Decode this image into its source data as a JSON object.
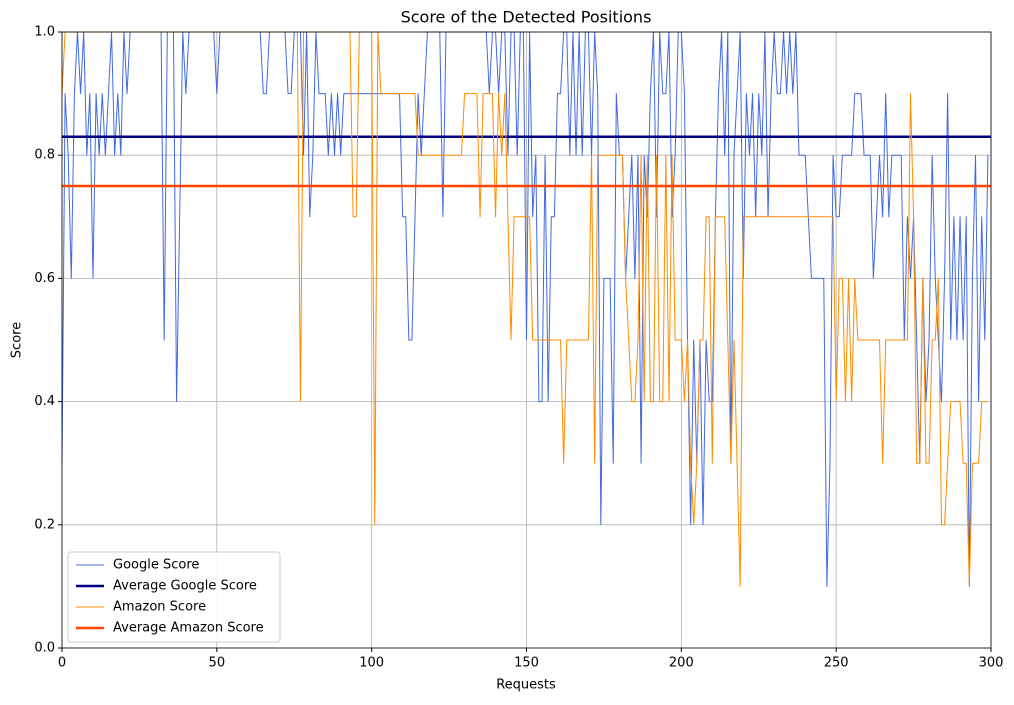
{
  "chart_data": {
    "type": "line",
    "title": "Score of the Detected Positions",
    "x_label": "Requests",
    "y_label": "Score",
    "xlim": [
      0,
      300
    ],
    "xticks": [
      0,
      50,
      100,
      150,
      200,
      250,
      300
    ],
    "ylim": [
      0,
      1
    ],
    "yticks": [
      {
        "value": 0,
        "label": "0.0"
      },
      0.2,
      0.4,
      0.6,
      0.8,
      {
        "value": 1,
        "label": "1.0"
      }
    ],
    "grid": true,
    "legend": "lower left",
    "x": [
      0,
      1,
      2,
      3,
      4,
      5,
      6,
      7,
      8,
      9,
      10,
      11,
      12,
      13,
      14,
      15,
      16,
      17,
      18,
      19,
      20,
      21,
      22,
      23,
      24,
      25,
      26,
      27,
      28,
      29,
      30,
      31,
      32,
      33,
      34,
      35,
      36,
      37,
      38,
      39,
      40,
      41,
      42,
      43,
      44,
      45,
      46,
      47,
      48,
      49,
      50,
      51,
      52,
      53,
      54,
      55,
      56,
      57,
      58,
      59,
      60,
      61,
      62,
      63,
      64,
      65,
      66,
      67,
      68,
      69,
      70,
      71,
      72,
      73,
      74,
      75,
      76,
      77,
      78,
      79,
      80,
      81,
      82,
      83,
      84,
      85,
      86,
      87,
      88,
      89,
      90,
      91,
      92,
      93,
      94,
      95,
      96,
      97,
      98,
      99,
      100,
      101,
      102,
      103,
      104,
      105,
      106,
      107,
      108,
      109,
      110,
      111,
      112,
      113,
      114,
      115,
      116,
      117,
      118,
      119,
      120,
      121,
      122,
      123,
      124,
      125,
      126,
      127,
      128,
      129,
      130,
      131,
      132,
      133,
      134,
      135,
      136,
      137,
      138,
      139,
      140,
      141,
      142,
      143,
      144,
      145,
      146,
      147,
      148,
      149,
      150,
      151,
      152,
      153,
      154,
      155,
      156,
      157,
      158,
      159,
      160,
      161,
      162,
      163,
      164,
      165,
      166,
      167,
      168,
      169,
      170,
      171,
      172,
      173,
      174,
      175,
      176,
      177,
      178,
      179,
      180,
      181,
      182,
      183,
      184,
      185,
      186,
      187,
      188,
      189,
      190,
      191,
      192,
      193,
      194,
      195,
      196,
      197,
      198,
      199,
      200,
      201,
      202,
      203,
      204,
      205,
      206,
      207,
      208,
      209,
      210,
      211,
      212,
      213,
      214,
      215,
      216,
      217,
      218,
      219,
      220,
      221,
      222,
      223,
      224,
      225,
      226,
      227,
      228,
      229,
      230,
      231,
      232,
      233,
      234,
      235,
      236,
      237,
      238,
      239,
      240,
      241,
      242,
      243,
      244,
      245,
      246,
      247,
      248,
      249,
      250,
      251,
      252,
      253,
      254,
      255,
      256,
      257,
      258,
      259,
      260,
      261,
      262,
      263,
      264,
      265,
      266,
      267,
      268,
      269,
      270,
      271,
      272,
      273,
      274,
      275,
      276,
      277,
      278,
      279,
      280,
      281,
      282,
      283,
      284,
      285,
      286,
      287,
      288,
      289,
      290,
      291,
      292,
      293,
      294,
      295,
      296,
      297,
      298,
      299
    ],
    "series": [
      {
        "name": "Google Score",
        "color": "#4169e1",
        "width": 1,
        "values": [
          0.3,
          0.9,
          0.8,
          0.6,
          0.9,
          1,
          0.9,
          1,
          0.8,
          0.9,
          0.6,
          0.9,
          0.8,
          0.9,
          0.8,
          0.9,
          1,
          0.8,
          0.9,
          0.8,
          1,
          0.9,
          1,
          1,
          1,
          1,
          1,
          1,
          1,
          1,
          1,
          1,
          1,
          0.5,
          1,
          1,
          1,
          0.4,
          0.7,
          1,
          0.9,
          1,
          1,
          1,
          1,
          1,
          1,
          1,
          1,
          1,
          0.9,
          1,
          1,
          1,
          1,
          1,
          1,
          1,
          1,
          1,
          1,
          1,
          1,
          1,
          1,
          0.9,
          0.9,
          1,
          1,
          1,
          1,
          1,
          1,
          0.9,
          0.9,
          1,
          1,
          1,
          0.8,
          1,
          0.7,
          0.8,
          1,
          0.9,
          0.9,
          0.9,
          0.8,
          0.9,
          0.8,
          0.9,
          0.8,
          0.9,
          0.9,
          0.9,
          0.9,
          0.9,
          0.9,
          0.9,
          0.9,
          0.9,
          0.9,
          0.9,
          0.9,
          0.9,
          0.9,
          0.9,
          0.9,
          0.9,
          0.9,
          0.9,
          0.7,
          0.7,
          0.5,
          0.5,
          0.7,
          0.9,
          0.8,
          0.9,
          1,
          1,
          1,
          1,
          1,
          0.7,
          1,
          1,
          1,
          1,
          1,
          1,
          1,
          1,
          1,
          1,
          1,
          1,
          1,
          1,
          0.9,
          1,
          1,
          0.9,
          1,
          1,
          0.8,
          1,
          1,
          0.8,
          1,
          1,
          0.5,
          1,
          0.7,
          0.8,
          0.4,
          0.4,
          0.8,
          0.4,
          0.7,
          0.7,
          0.9,
          0.9,
          1,
          1,
          0.8,
          1,
          0.8,
          1,
          0.8,
          1,
          1,
          0.8,
          1,
          0.9,
          0.2,
          0.6,
          0.6,
          0.6,
          0.3,
          0.9,
          0.8,
          0.8,
          0.6,
          0.7,
          0.8,
          0.6,
          0.8,
          0.3,
          0.8,
          0.7,
          0.9,
          1,
          0.7,
          1,
          0.9,
          0.9,
          1,
          0.7,
          0.8,
          1,
          1,
          0.9,
          0.5,
          0.2,
          0.5,
          0.3,
          0.5,
          0.2,
          0.5,
          0.4,
          0.4,
          0.7,
          0.9,
          1,
          0.8,
          1,
          0.3,
          0.8,
          0.9,
          1,
          0.6,
          0.9,
          0.8,
          0.9,
          0.7,
          0.9,
          0.8,
          1,
          0.7,
          0.9,
          1,
          0.9,
          0.9,
          1,
          0.9,
          1,
          0.9,
          1,
          0.8,
          0.8,
          0.8,
          0.7,
          0.6,
          0.6,
          0.6,
          0.6,
          0.6,
          0.1,
          0.3,
          0.8,
          0.7,
          0.7,
          0.8,
          0.8,
          0.8,
          0.8,
          0.9,
          0.9,
          0.9,
          0.8,
          0.8,
          0.8,
          0.6,
          0.7,
          0.8,
          0.7,
          0.9,
          0.7,
          0.8,
          0.8,
          0.8,
          0.8,
          0.5,
          0.7,
          0.6,
          0.7,
          0.5,
          0.3,
          0.6,
          0.4,
          0.5,
          0.8,
          0.6,
          0.5,
          0.4,
          0.6,
          0.9,
          0.5,
          0.7,
          0.5,
          0.7,
          0.5,
          0.7,
          0.1,
          0.6,
          0.8,
          0.4,
          0.7,
          0.5,
          0.8
        ]
      },
      {
        "name": "Average Google Score",
        "color": "#000080",
        "width": 2.5,
        "value": 0.83
      },
      {
        "name": "Amazon Score",
        "color": "#ff8c00",
        "width": 1,
        "values": [
          0.9,
          1,
          1,
          1,
          1,
          1,
          1,
          1,
          1,
          1,
          1,
          1,
          1,
          1,
          1,
          1,
          1,
          1,
          1,
          1,
          1,
          1,
          1,
          1,
          1,
          1,
          1,
          1,
          1,
          1,
          1,
          1,
          1,
          1,
          1,
          1,
          1,
          1,
          1,
          1,
          1,
          1,
          1,
          1,
          1,
          1,
          1,
          1,
          1,
          1,
          1,
          1,
          1,
          1,
          1,
          1,
          1,
          1,
          1,
          1,
          1,
          1,
          1,
          1,
          1,
          1,
          1,
          1,
          1,
          1,
          1,
          1,
          1,
          1,
          1,
          1,
          1,
          0.4,
          1,
          1,
          1,
          1,
          1,
          1,
          1,
          1,
          1,
          1,
          1,
          1,
          1,
          1,
          1,
          1,
          0.7,
          0.7,
          1,
          1,
          1,
          1,
          1,
          0.2,
          1,
          0.9,
          0.9,
          0.9,
          0.9,
          0.9,
          0.9,
          0.9,
          0.9,
          0.9,
          0.9,
          0.9,
          0.9,
          0.8,
          0.8,
          0.8,
          0.8,
          0.8,
          0.8,
          0.8,
          0.8,
          0.8,
          0.8,
          0.8,
          0.8,
          0.8,
          0.8,
          0.8,
          0.9,
          0.9,
          0.9,
          0.9,
          0.9,
          0.7,
          0.9,
          0.9,
          0.9,
          0.9,
          0.7,
          0.9,
          0.8,
          0.9,
          0.7,
          0.5,
          0.7,
          0.7,
          0.7,
          0.7,
          0.7,
          0.7,
          0.5,
          0.5,
          0.5,
          0.5,
          0.5,
          0.5,
          0.5,
          0.5,
          0.5,
          0.5,
          0.3,
          0.5,
          0.5,
          0.5,
          0.5,
          0.5,
          0.5,
          0.5,
          0.5,
          0.8,
          0.3,
          0.8,
          0.8,
          0.8,
          0.8,
          0.8,
          0.8,
          0.8,
          0.8,
          0.8,
          0.6,
          0.5,
          0.4,
          0.4,
          0.5,
          0.8,
          0.4,
          0.8,
          0.4,
          0.4,
          0.8,
          0.4,
          0.4,
          0.8,
          0.4,
          0.8,
          0.5,
          0.5,
          0.5,
          0.4,
          0.5,
          0.3,
          0.2,
          0.3,
          0.5,
          0.5,
          0.7,
          0.7,
          0.3,
          0.7,
          0.7,
          0.7,
          0.7,
          0.5,
          0.3,
          0.5,
          0.3,
          0.1,
          0.7,
          0.7,
          0.7,
          0.7,
          0.7,
          0.7,
          0.7,
          0.7,
          0.7,
          0.7,
          0.7,
          0.7,
          0.7,
          0.7,
          0.7,
          0.7,
          0.7,
          0.7,
          0.7,
          0.7,
          0.7,
          0.7,
          0.7,
          0.7,
          0.7,
          0.7,
          0.7,
          0.7,
          0.7,
          0.7,
          0.4,
          0.6,
          0.6,
          0.4,
          0.6,
          0.4,
          0.6,
          0.5,
          0.5,
          0.5,
          0.5,
          0.5,
          0.5,
          0.5,
          0.5,
          0.3,
          0.5,
          0.5,
          0.5,
          0.5,
          0.5,
          0.5,
          0.5,
          0.5,
          0.9,
          0.7,
          0.3,
          0.3,
          0.6,
          0.3,
          0.3,
          0.5,
          0.5,
          0.6,
          0.2,
          0.2,
          0.3,
          0.4,
          0.4,
          0.4,
          0.4,
          0.3,
          0.3,
          0.1,
          0.3,
          0.3,
          0.3,
          0.4,
          0.4,
          0.4
        ]
      },
      {
        "name": "Average Amazon Score",
        "color": "#ff4500",
        "width": 2.5,
        "value": 0.75
      }
    ]
  }
}
